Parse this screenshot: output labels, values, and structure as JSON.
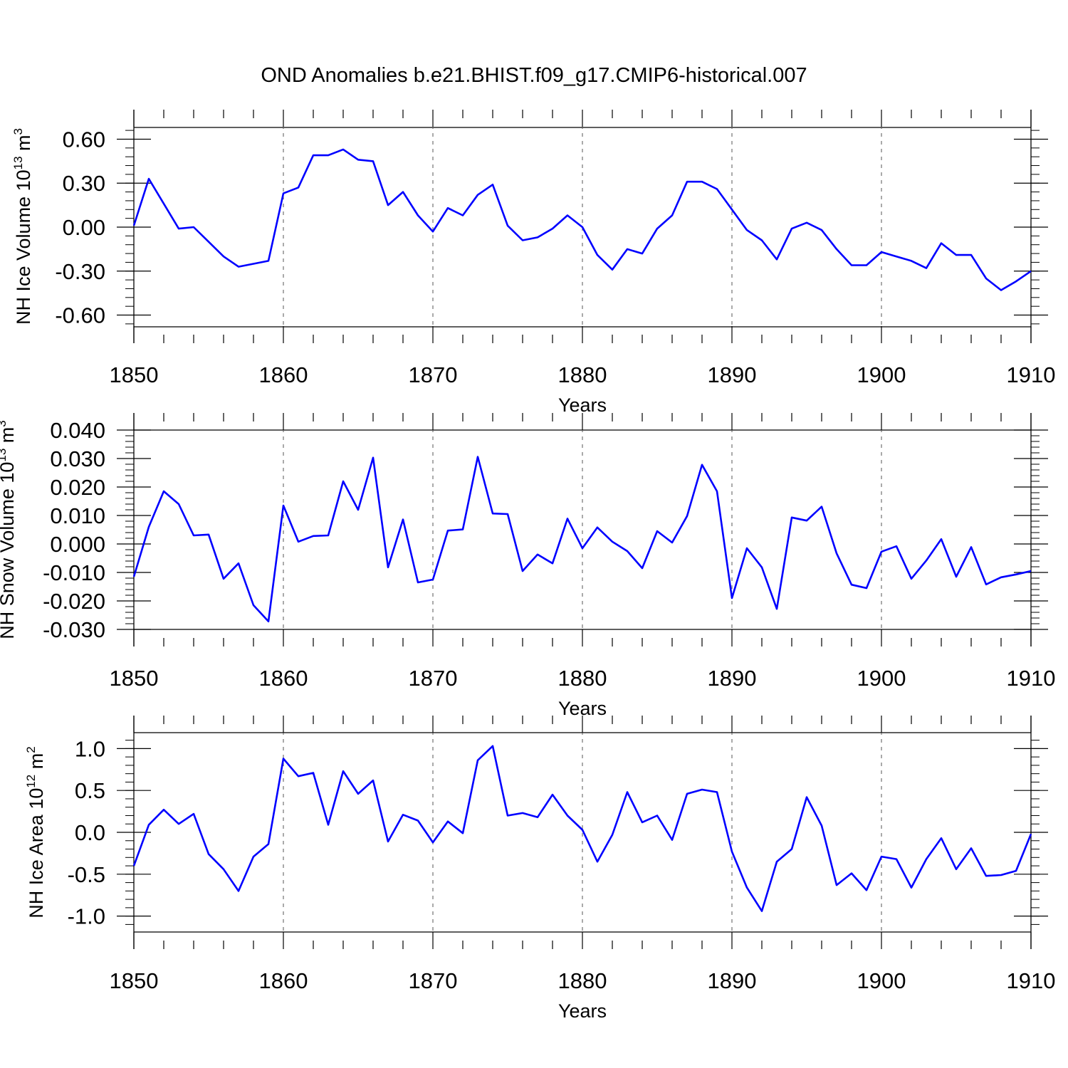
{
  "title": "OND Anomalies b.e21.BHIST.f09_g17.CMIP6-historical.007",
  "colors": {
    "line": "#0000ff",
    "axis": "#000000",
    "grid": "#555555"
  },
  "chart_data": [
    {
      "type": "line",
      "ylabel": "NH Ice Volume 10",
      "ylabel_exp": "13",
      "ylabel_unit": "m",
      "ylabel_unit_exp": "3",
      "xlabel": "Years",
      "xlim": [
        1850,
        1910
      ],
      "ylim": [
        -0.68,
        0.68
      ],
      "yticks": [
        -0.6,
        -0.3,
        0.0,
        0.3,
        0.6
      ],
      "ytick_labels": [
        "-0.60",
        "-0.30",
        "0.00",
        "0.30",
        "0.60"
      ],
      "xticks": [
        1850,
        1860,
        1870,
        1880,
        1890,
        1900,
        1910
      ],
      "xtick_labels": [
        "1850",
        "1860",
        "1870",
        "1880",
        "1890",
        "1900",
        "1910"
      ],
      "x": [
        1850,
        1851,
        1852,
        1853,
        1854,
        1855,
        1856,
        1857,
        1858,
        1859,
        1860,
        1861,
        1862,
        1863,
        1864,
        1865,
        1866,
        1867,
        1868,
        1869,
        1870,
        1871,
        1872,
        1873,
        1874,
        1875,
        1876,
        1877,
        1878,
        1879,
        1880,
        1881,
        1882,
        1883,
        1884,
        1885,
        1886,
        1887,
        1888,
        1889,
        1890,
        1891,
        1892,
        1893,
        1894,
        1895,
        1896,
        1897,
        1898,
        1899,
        1900,
        1901,
        1902,
        1903,
        1904,
        1905,
        1906,
        1907,
        1908,
        1909,
        1910
      ],
      "values": [
        0.01,
        0.33,
        0.16,
        -0.01,
        0.0,
        -0.1,
        -0.2,
        -0.27,
        -0.25,
        -0.23,
        0.23,
        0.27,
        0.49,
        0.49,
        0.53,
        0.46,
        0.45,
        0.15,
        0.24,
        0.08,
        -0.03,
        0.13,
        0.08,
        0.22,
        0.29,
        0.01,
        -0.09,
        -0.07,
        -0.01,
        0.08,
        0.0,
        -0.19,
        -0.29,
        -0.15,
        -0.18,
        -0.01,
        0.08,
        0.31,
        0.31,
        0.26,
        0.12,
        -0.02,
        -0.09,
        -0.22,
        -0.01,
        0.03,
        -0.02,
        -0.15,
        -0.26,
        -0.26,
        -0.17,
        -0.2,
        -0.23,
        -0.28,
        -0.11,
        -0.19,
        -0.19,
        -0.35,
        -0.43,
        -0.37,
        -0.3
      ]
    },
    {
      "type": "line",
      "ylabel": "NH Snow Volume 10",
      "ylabel_exp": "13",
      "ylabel_unit": "m",
      "ylabel_unit_exp": "3",
      "xlabel": "Years",
      "xlim": [
        1850,
        1910
      ],
      "ylim": [
        -0.03,
        0.04
      ],
      "yticks": [
        -0.03,
        -0.02,
        -0.01,
        0.0,
        0.01,
        0.02,
        0.03,
        0.04
      ],
      "ytick_labels": [
        "-0.030",
        "-0.020",
        "-0.010",
        "0.000",
        "0.010",
        "0.020",
        "0.030",
        "0.040"
      ],
      "xticks": [
        1850,
        1860,
        1870,
        1880,
        1890,
        1900,
        1910
      ],
      "xtick_labels": [
        "1850",
        "1860",
        "1870",
        "1880",
        "1890",
        "1900",
        "1910"
      ],
      "x": [
        1850,
        1851,
        1852,
        1853,
        1854,
        1855,
        1856,
        1857,
        1858,
        1859,
        1860,
        1861,
        1862,
        1863,
        1864,
        1865,
        1866,
        1867,
        1868,
        1869,
        1870,
        1871,
        1872,
        1873,
        1874,
        1875,
        1876,
        1877,
        1878,
        1879,
        1880,
        1881,
        1882,
        1883,
        1884,
        1885,
        1886,
        1887,
        1888,
        1889,
        1890,
        1891,
        1892,
        1893,
        1894,
        1895,
        1896,
        1897,
        1898,
        1899,
        1900,
        1901,
        1902,
        1903,
        1904,
        1905,
        1906,
        1907,
        1908,
        1909,
        1910
      ],
      "values": [
        -0.0115,
        0.006,
        0.0185,
        0.014,
        0.003,
        0.0033,
        -0.0122,
        -0.0068,
        -0.0215,
        -0.0272,
        0.0135,
        0.0008,
        0.0028,
        0.003,
        0.022,
        0.012,
        0.0303,
        -0.0082,
        0.0086,
        -0.0135,
        -0.0125,
        0.0047,
        0.0051,
        0.0306,
        0.0107,
        0.0105,
        -0.0095,
        -0.0037,
        -0.0068,
        0.0089,
        -0.0015,
        0.0058,
        0.0008,
        -0.0025,
        -0.0085,
        0.0045,
        0.0005,
        0.0098,
        0.0278,
        0.0185,
        -0.019,
        -0.0015,
        -0.0082,
        -0.0228,
        0.0093,
        0.0082,
        0.0131,
        -0.0033,
        -0.0143,
        -0.0155,
        -0.0027,
        -0.0008,
        -0.0122,
        -0.0058,
        0.0017,
        -0.0115,
        -0.0011,
        -0.0142,
        -0.0117,
        -0.0107,
        -0.0095
      ]
    },
    {
      "type": "line",
      "ylabel": "NH Ice Area 10",
      "ylabel_exp": "12",
      "ylabel_unit": "m",
      "ylabel_unit_exp": "2",
      "xlabel": "Years",
      "xlim": [
        1850,
        1910
      ],
      "ylim": [
        -1.19,
        1.19
      ],
      "yticks": [
        -1.0,
        -0.5,
        0.0,
        0.5,
        1.0
      ],
      "ytick_labels": [
        "-1.0",
        "-0.5",
        "0.0",
        "0.5",
        "1.0"
      ],
      "xticks": [
        1850,
        1860,
        1870,
        1880,
        1890,
        1900,
        1910
      ],
      "xtick_labels": [
        "1850",
        "1860",
        "1870",
        "1880",
        "1890",
        "1900",
        "1910"
      ],
      "x": [
        1850,
        1851,
        1852,
        1853,
        1854,
        1855,
        1856,
        1857,
        1858,
        1859,
        1860,
        1861,
        1862,
        1863,
        1864,
        1865,
        1866,
        1867,
        1868,
        1869,
        1870,
        1871,
        1872,
        1873,
        1874,
        1875,
        1876,
        1877,
        1878,
        1879,
        1880,
        1881,
        1882,
        1883,
        1884,
        1885,
        1886,
        1887,
        1888,
        1889,
        1890,
        1891,
        1892,
        1893,
        1894,
        1895,
        1896,
        1897,
        1898,
        1899,
        1900,
        1901,
        1902,
        1903,
        1904,
        1905,
        1906,
        1907,
        1908,
        1909,
        1910
      ],
      "values": [
        -0.4,
        0.09,
        0.27,
        0.1,
        0.22,
        -0.26,
        -0.44,
        -0.7,
        -0.29,
        -0.14,
        0.88,
        0.67,
        0.71,
        0.09,
        0.73,
        0.46,
        0.62,
        -0.11,
        0.21,
        0.14,
        -0.12,
        0.13,
        -0.01,
        0.86,
        1.03,
        0.2,
        0.23,
        0.18,
        0.45,
        0.2,
        0.03,
        -0.35,
        -0.03,
        0.48,
        0.12,
        0.2,
        -0.09,
        0.46,
        0.51,
        0.48,
        -0.23,
        -0.66,
        -0.94,
        -0.35,
        -0.2,
        0.42,
        0.08,
        -0.63,
        -0.49,
        -0.69,
        -0.29,
        -0.32,
        -0.66,
        -0.32,
        -0.07,
        -0.44,
        -0.19,
        -0.52,
        -0.51,
        -0.46,
        -0.02
      ]
    }
  ]
}
